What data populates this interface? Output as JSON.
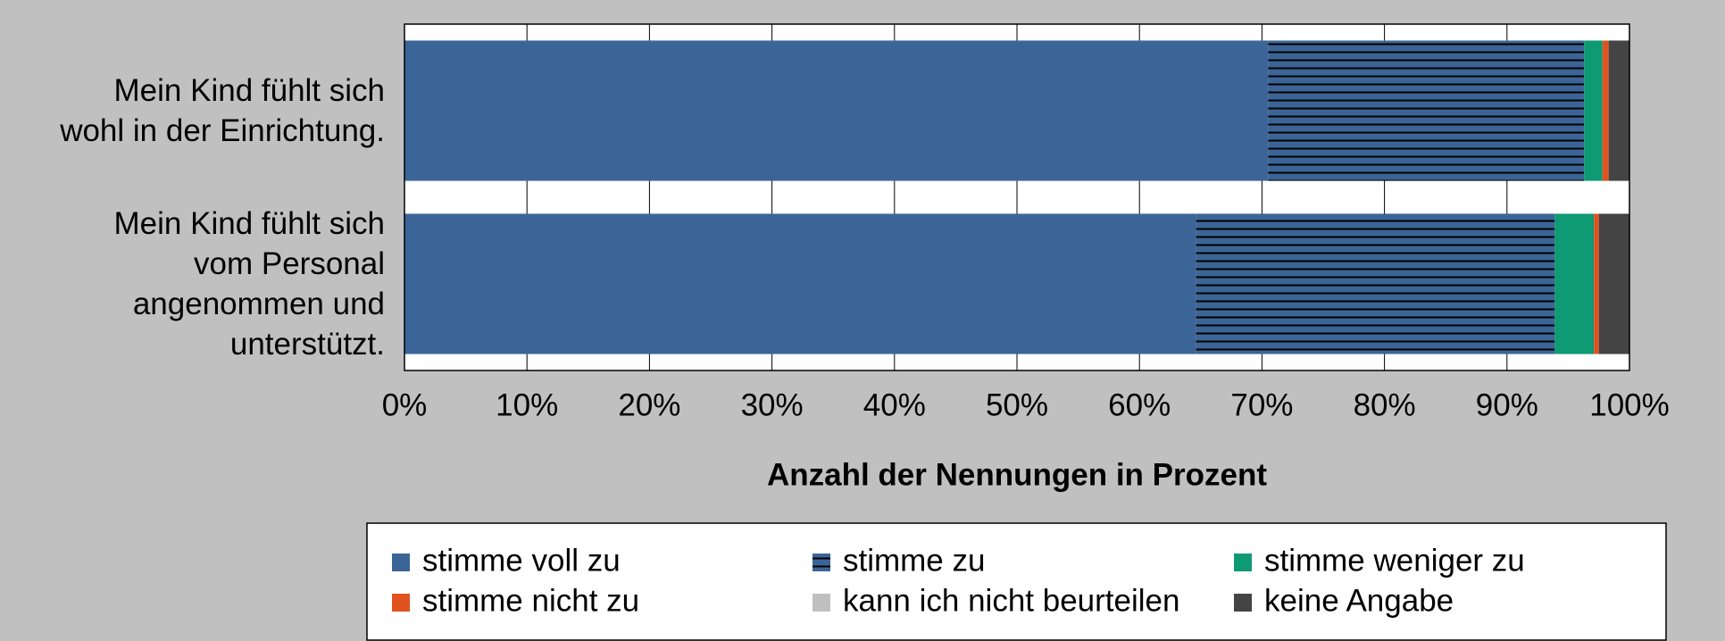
{
  "chart_data": {
    "type": "stacked-barh",
    "categories": [
      "Mein Kind fühlt sich\nwohl in der Einrichtung.",
      "Mein Kind fühlt sich\nvom Personal\nangenommen und\nunterstützt."
    ],
    "series": [
      {
        "name": "stimme voll zu",
        "color": "#3b6597",
        "values": [
          70.5,
          64.6
        ]
      },
      {
        "name": "stimme zu",
        "color": "#3b6597",
        "hatch": "horizontal",
        "values": [
          25.8,
          29.3
        ]
      },
      {
        "name": "stimme weniger zu",
        "color": "#0e9a72",
        "values": [
          1.5,
          3.2
        ]
      },
      {
        "name": "stimme nicht zu",
        "color": "#e0531f",
        "values": [
          0.5,
          0.4
        ]
      },
      {
        "name": "kann ich nicht beurteilen",
        "color": "#c0c0c0",
        "values": [
          0,
          0
        ]
      },
      {
        "name": "keine Angabe",
        "color": "#444444",
        "values": [
          1.7,
          2.5
        ]
      }
    ],
    "xlabel": "Anzahl der Nennungen in Prozent",
    "xlim": [
      0,
      100
    ],
    "xticks": [
      {
        "value": 0,
        "label": "0%"
      },
      {
        "value": 10,
        "label": "10%"
      },
      {
        "value": 20,
        "label": "20%"
      },
      {
        "value": 30,
        "label": "30%"
      },
      {
        "value": 40,
        "label": "40%"
      },
      {
        "value": 50,
        "label": "50%"
      },
      {
        "value": 60,
        "label": "60%"
      },
      {
        "value": 70,
        "label": "70%"
      },
      {
        "value": 80,
        "label": "80%"
      },
      {
        "value": 90,
        "label": "90%"
      },
      {
        "value": 100,
        "label": "100%"
      }
    ],
    "grid": true,
    "legend": "bottom"
  }
}
